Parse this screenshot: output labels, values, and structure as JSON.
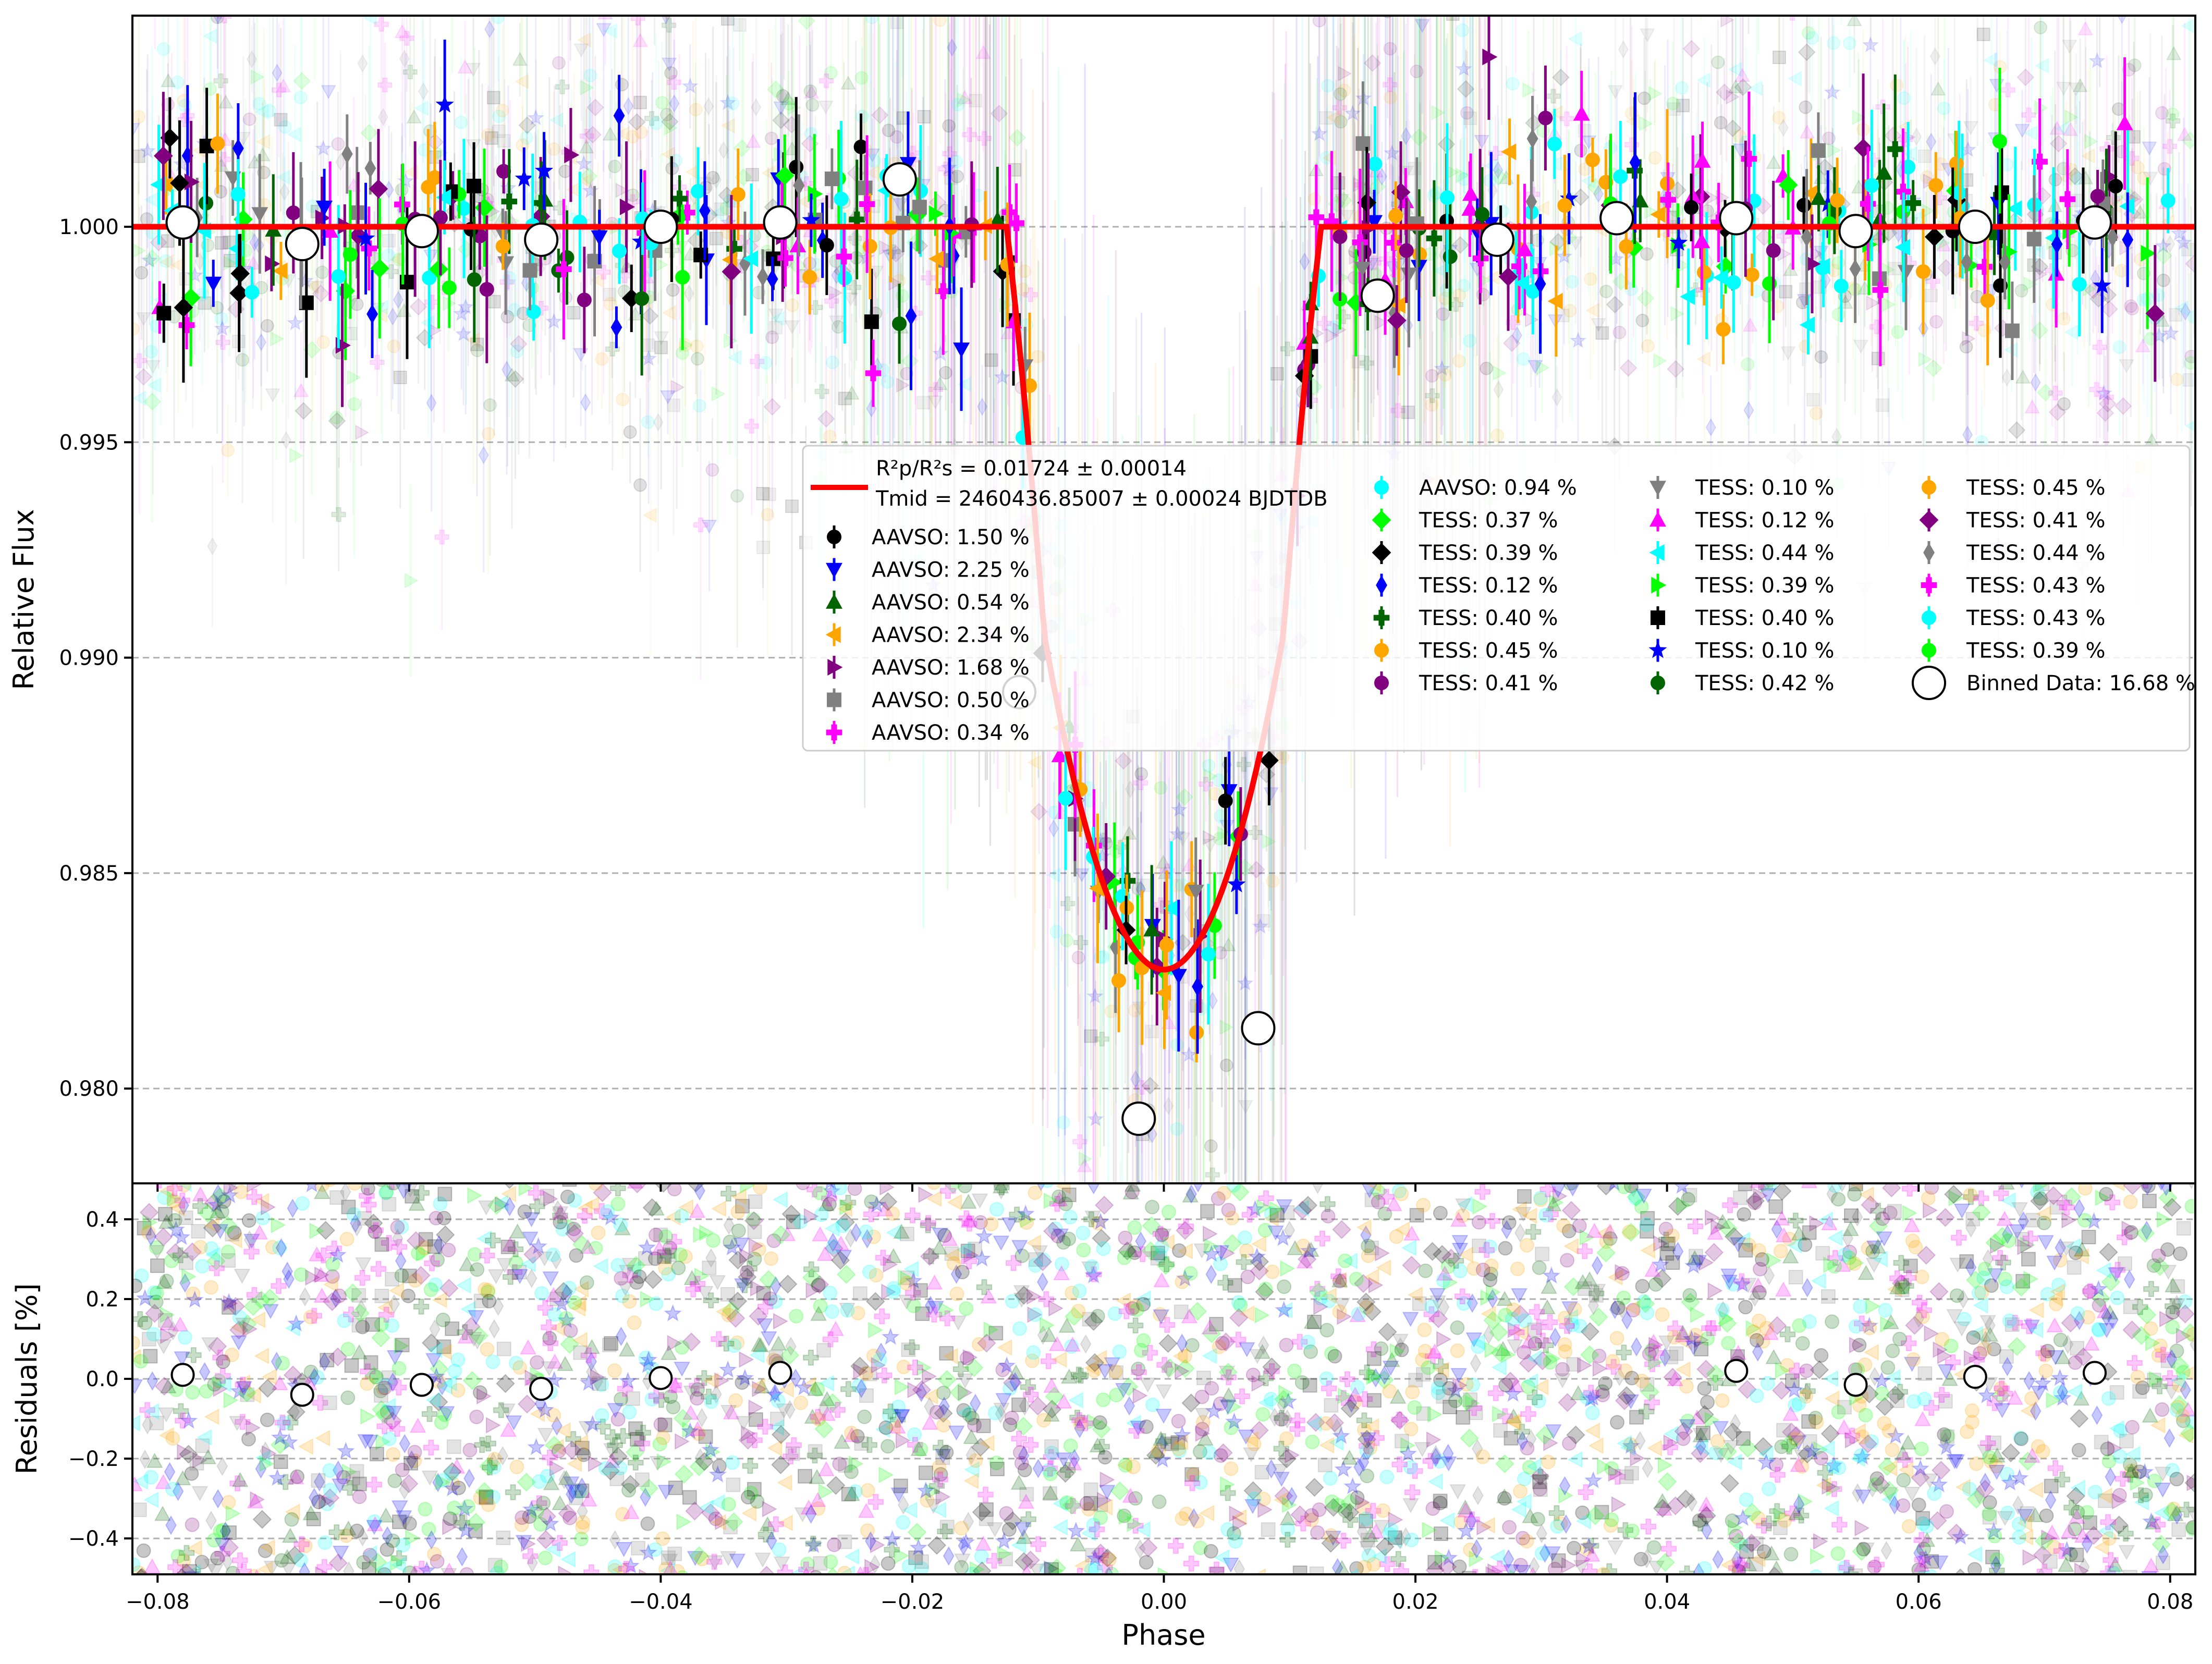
{
  "chart_data": [
    {
      "type": "scatter",
      "panel": "lightcurve",
      "title": "",
      "xlabel": "",
      "ylabel": "Relative Flux",
      "xlim": [
        -0.082,
        0.082
      ],
      "ylim": [
        0.9778,
        1.0049
      ],
      "grid": "horizontal dashed",
      "y_ticks": [
        0.98,
        0.985,
        0.99,
        0.995,
        1.0
      ],
      "y_tick_labels": [
        "0.980",
        "0.985",
        "0.990",
        "0.995",
        "1.000"
      ],
      "transit": {
        "depth": 0.01724,
        "ingress_start": -0.0125,
        "egress_end": 0.0125
      },
      "legend": {
        "placement": "center-right",
        "model_label_1": "R²p/R²s = 0.01724 ± 0.00014",
        "model_label_2": "Tmid = 2460436.85007 ± 0.00024 BJDTDB",
        "entries": [
          {
            "label": "AAVSO: 1.50 %",
            "marker": "circle",
            "color": "#000000"
          },
          {
            "label": "AAVSO: 2.25 %",
            "marker": "triangle-down",
            "color": "#0000ff"
          },
          {
            "label": "AAVSO: 0.54 %",
            "marker": "triangle-up",
            "color": "#006400"
          },
          {
            "label": "AAVSO: 2.34 %",
            "marker": "triangle-left",
            "color": "#ffa500"
          },
          {
            "label": "AAVSO: 1.68 %",
            "marker": "triangle-right",
            "color": "#800080"
          },
          {
            "label": "AAVSO: 0.50 %",
            "marker": "square",
            "color": "#808080"
          },
          {
            "label": "AAVSO: 0.34 %",
            "marker": "plus",
            "color": "#ff00ff"
          },
          {
            "label": "AAVSO: 0.94 %",
            "marker": "octagon",
            "color": "#00ffff"
          },
          {
            "label": "TESS: 0.37 %",
            "marker": "diamond",
            "color": "#00ff00"
          },
          {
            "label": "TESS: 0.39 %",
            "marker": "diamond",
            "color": "#000000"
          },
          {
            "label": "TESS: 0.12 %",
            "marker": "thin-diamond",
            "color": "#0000ff"
          },
          {
            "label": "TESS: 0.40 %",
            "marker": "plus",
            "color": "#006400"
          },
          {
            "label": "TESS: 0.45 %",
            "marker": "octagon",
            "color": "#ffa500"
          },
          {
            "label": "TESS: 0.41 %",
            "marker": "circle",
            "color": "#800080"
          },
          {
            "label": "TESS: 0.10 %",
            "marker": "triangle-down",
            "color": "#808080"
          },
          {
            "label": "TESS: 0.12 %",
            "marker": "triangle-up",
            "color": "#ff00ff"
          },
          {
            "label": "TESS: 0.44 %",
            "marker": "triangle-left",
            "color": "#00ffff"
          },
          {
            "label": "TESS: 0.39 %",
            "marker": "triangle-right",
            "color": "#00ff00"
          },
          {
            "label": "TESS: 0.40 %",
            "marker": "square",
            "color": "#000000"
          },
          {
            "label": "TESS: 0.10 %",
            "marker": "star",
            "color": "#0000ff"
          },
          {
            "label": "TESS: 0.42 %",
            "marker": "hexagon",
            "color": "#006400"
          },
          {
            "label": "TESS: 0.45 %",
            "marker": "hexagon",
            "color": "#ffa500"
          },
          {
            "label": "TESS: 0.41 %",
            "marker": "diamond",
            "color": "#800080"
          },
          {
            "label": "TESS: 0.44 %",
            "marker": "thin-diamond",
            "color": "#808080"
          },
          {
            "label": "TESS: 0.43 %",
            "marker": "plus",
            "color": "#ff00ff"
          },
          {
            "label": "TESS: 0.43 %",
            "marker": "octagon",
            "color": "#00ffff"
          },
          {
            "label": "TESS: 0.39 %",
            "marker": "circle",
            "color": "#00ff00"
          },
          {
            "label": "Binned Data: 16.68 %",
            "marker": "open-circle",
            "color": "#000000"
          }
        ]
      },
      "binned": {
        "x": [
          -0.078,
          -0.0685,
          -0.059,
          -0.0495,
          -0.04,
          -0.0305,
          -0.021,
          -0.0115,
          -0.002,
          0.0075,
          0.017,
          0.0265,
          0.036,
          0.0455,
          0.055,
          0.0645,
          0.074
        ],
        "y": [
          1.0001,
          0.9996,
          0.9999,
          0.9997,
          1.0,
          1.0001,
          1.0011,
          0.9892,
          0.9793,
          0.9814,
          0.9984,
          0.9997,
          1.0002,
          1.0002,
          0.9999,
          1.0,
          1.0001
        ]
      }
    },
    {
      "type": "scatter",
      "panel": "residuals",
      "xlabel": "Phase",
      "ylabel": "Residuals [%]",
      "xlim": [
        -0.082,
        0.082
      ],
      "ylim": [
        -0.49,
        0.49
      ],
      "grid": "horizontal dashed",
      "x_ticks": [
        -0.08,
        -0.06,
        -0.04,
        -0.02,
        0.0,
        0.02,
        0.04,
        0.06,
        0.08
      ],
      "x_tick_labels": [
        "−0.08",
        "−0.06",
        "−0.04",
        "−0.02",
        "0.00",
        "0.02",
        "0.04",
        "0.06",
        "0.08"
      ],
      "y_ticks": [
        -0.4,
        -0.2,
        0.0,
        0.2,
        0.4
      ],
      "y_tick_labels": [
        "−0.4",
        "−0.2",
        "0.0",
        "0.2",
        "0.4"
      ],
      "binned_residuals": {
        "x": [
          -0.078,
          -0.0685,
          -0.059,
          -0.0495,
          -0.04,
          -0.0305,
          0.0455,
          0.055,
          0.0645,
          0.074
        ],
        "y": [
          0.01,
          -0.04,
          -0.015,
          -0.025,
          0.002,
          0.015,
          0.02,
          -0.015,
          0.005,
          0.015
        ]
      }
    }
  ]
}
